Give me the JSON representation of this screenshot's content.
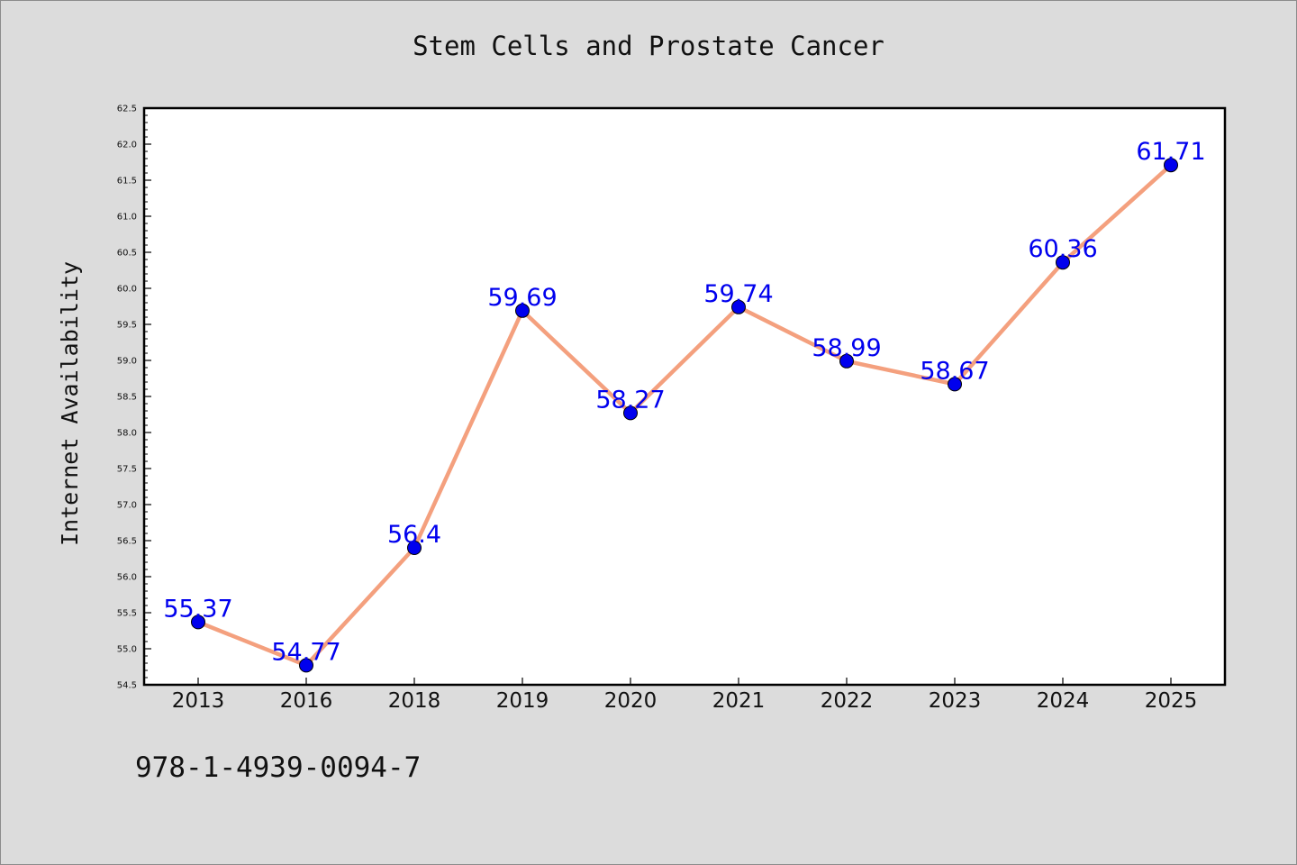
{
  "chart_data": {
    "type": "line",
    "title": "Stem Cells and Prostate Cancer",
    "xlabel": "",
    "ylabel": "Internet Availability",
    "categories": [
      "2013",
      "2016",
      "2018",
      "2019",
      "2020",
      "2021",
      "2022",
      "2023",
      "2024",
      "2025"
    ],
    "values": [
      55.37,
      54.77,
      56.4,
      59.69,
      58.27,
      59.74,
      58.99,
      58.67,
      60.36,
      61.71
    ],
    "data_labels": [
      "55.37",
      "54.77",
      "56.4",
      "59.69",
      "58.27",
      "59.74",
      "58.99",
      "58.67",
      "60.36",
      "61.71"
    ],
    "ylim": [
      54.5,
      62.5
    ],
    "yticks": [
      "54.5",
      "55.0",
      "55.5",
      "56.0",
      "56.5",
      "57.0",
      "57.5",
      "58.0",
      "58.5",
      "59.0",
      "59.5",
      "60.0",
      "60.5",
      "61.0",
      "61.5",
      "62.0",
      "62.5"
    ],
    "grid": false,
    "colors": {
      "line": "#f4a07e",
      "marker": "#0000ee",
      "data_label": "#0000ee"
    }
  },
  "footer": {
    "isbn": "978-1-4939-0094-7"
  }
}
